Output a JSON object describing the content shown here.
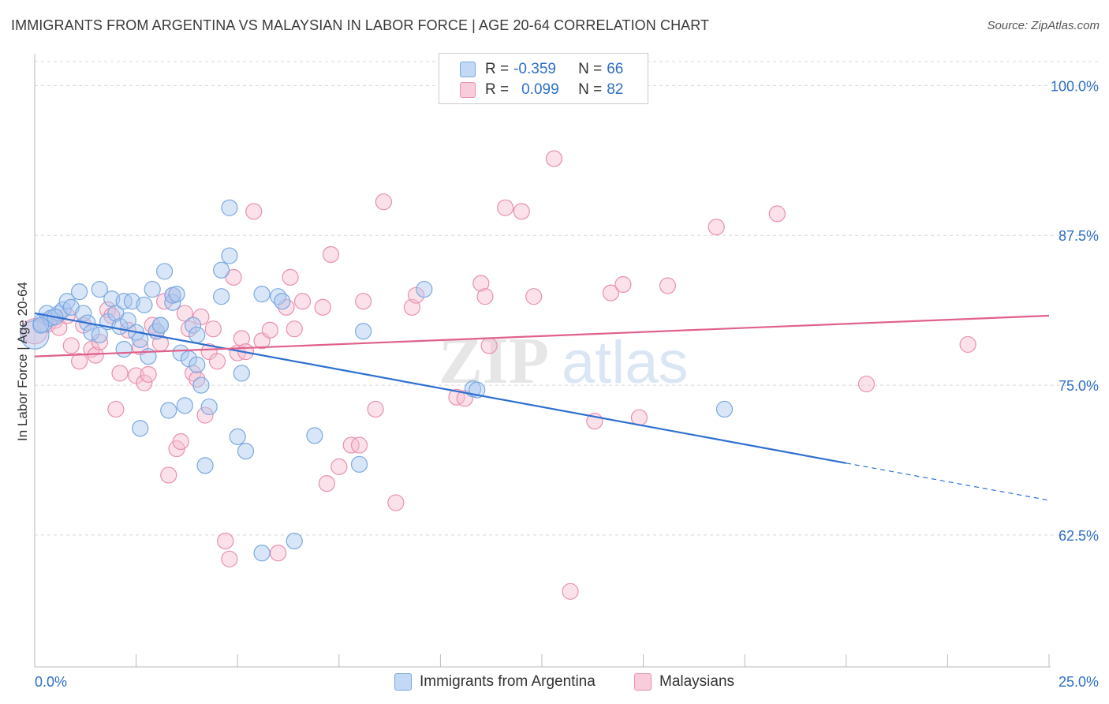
{
  "title": "IMMIGRANTS FROM ARGENTINA VS MALAYSIAN IN LABOR FORCE | AGE 20-64 CORRELATION CHART",
  "source": "Source: ZipAtlas.com",
  "watermark": {
    "zip": "ZIP",
    "atlas": "atlas"
  },
  "legend": {
    "rows": [
      {
        "r_label": "R =",
        "r_value": "-0.359",
        "n_label": "N =",
        "n_value": "66"
      },
      {
        "r_label": "R =",
        "r_value": "0.099",
        "n_label": "N =",
        "n_value": "82"
      }
    ]
  },
  "colors": {
    "blue_fill": "#aac8f0",
    "blue_stroke": "#7aa8e0",
    "blue_line": "#2f6fd0",
    "pink_fill": "#f7bcd0",
    "pink_stroke": "#e890b0",
    "pink_line": "#e0608a",
    "value_text": "#2f6fc7",
    "grid": "#d8d8d8"
  },
  "chart_data": {
    "type": "scatter",
    "title": "IMMIGRANTS FROM ARGENTINA VS MALAYSIAN IN LABOR FORCE | AGE 20-64 CORRELATION CHART",
    "xlabel": "",
    "ylabel": "In Labor Force | Age 20-64",
    "xlim": [
      0,
      25
    ],
    "ylim": [
      51.5,
      102.0
    ],
    "x_tick_labels": [
      "0.0%",
      "25.0%"
    ],
    "y_ticks": [
      100.0,
      87.5,
      75.0,
      62.5
    ],
    "y_tick_labels": [
      "100.0%",
      "87.5%",
      "75.0%",
      "62.5%"
    ],
    "grid": true,
    "legend_position": "top-center",
    "series": [
      {
        "name": "Immigrants from Argentina",
        "color": "blue",
        "R": -0.359,
        "N": 66,
        "trend": {
          "x0": 0,
          "y0": 81.0,
          "x1": 20.0,
          "y1": 68.5,
          "dash_x1": 25.0,
          "dash_y1": 65.4
        },
        "points": [
          [
            0.0,
            79.2,
            18
          ],
          [
            0.2,
            80.2,
            12
          ],
          [
            0.3,
            81.0,
            10
          ],
          [
            0.4,
            80.6,
            10
          ],
          [
            0.6,
            81.0,
            10
          ],
          [
            0.7,
            81.3,
            10
          ],
          [
            0.8,
            82.0,
            10
          ],
          [
            0.9,
            81.5,
            10
          ],
          [
            1.1,
            82.8,
            10
          ],
          [
            1.2,
            81.0,
            10
          ],
          [
            1.3,
            80.2,
            10
          ],
          [
            1.4,
            79.4,
            10
          ],
          [
            1.6,
            83.0,
            10
          ],
          [
            1.8,
            80.3,
            10
          ],
          [
            1.6,
            79.2,
            10
          ],
          [
            1.9,
            82.2,
            10
          ],
          [
            2.0,
            81.0,
            10
          ],
          [
            2.1,
            79.9,
            10
          ],
          [
            2.2,
            78.0,
            10
          ],
          [
            2.3,
            80.4,
            10
          ],
          [
            2.2,
            82.0,
            10
          ],
          [
            2.4,
            82.0,
            10
          ],
          [
            2.5,
            79.4,
            10
          ],
          [
            2.6,
            78.8,
            10
          ],
          [
            2.6,
            71.4,
            10
          ],
          [
            2.7,
            81.7,
            10
          ],
          [
            2.8,
            77.4,
            10
          ],
          [
            2.9,
            83.0,
            10
          ],
          [
            3.0,
            79.5,
            10
          ],
          [
            3.1,
            80.0,
            10
          ],
          [
            3.2,
            84.5,
            10
          ],
          [
            3.3,
            72.9,
            10
          ],
          [
            3.1,
            80.0,
            10
          ],
          [
            3.4,
            81.9,
            10
          ],
          [
            3.4,
            82.5,
            10
          ],
          [
            3.5,
            82.6,
            10
          ],
          [
            3.6,
            77.7,
            10
          ],
          [
            3.7,
            73.3,
            10
          ],
          [
            3.8,
            77.2,
            10
          ],
          [
            3.9,
            80.0,
            10
          ],
          [
            4.0,
            79.2,
            10
          ],
          [
            4.0,
            76.7,
            10
          ],
          [
            4.1,
            75.0,
            10
          ],
          [
            4.2,
            68.3,
            10
          ],
          [
            4.3,
            73.2,
            10
          ],
          [
            4.6,
            82.4,
            10
          ],
          [
            4.6,
            84.6,
            10
          ],
          [
            4.8,
            85.8,
            10
          ],
          [
            4.8,
            89.8,
            10
          ],
          [
            5.0,
            70.7,
            10
          ],
          [
            5.1,
            76.0,
            10
          ],
          [
            5.2,
            69.5,
            10
          ],
          [
            5.6,
            82.6,
            10
          ],
          [
            5.6,
            61.0,
            10
          ],
          [
            6.0,
            82.4,
            10
          ],
          [
            6.1,
            82.0,
            10
          ],
          [
            6.4,
            62.0,
            10
          ],
          [
            6.9,
            70.8,
            10
          ],
          [
            8.0,
            68.4,
            10
          ],
          [
            8.1,
            79.5,
            10
          ],
          [
            9.6,
            83.0,
            10
          ],
          [
            10.8,
            74.7,
            10
          ],
          [
            10.9,
            74.6,
            10
          ],
          [
            17.0,
            73.0,
            10
          ],
          [
            0.15,
            80.0,
            10
          ],
          [
            0.5,
            80.7,
            10
          ]
        ]
      },
      {
        "name": "Malaysians",
        "color": "pink",
        "R": 0.099,
        "N": 82,
        "trend": {
          "x0": 0,
          "y0": 77.4,
          "x1": 25.0,
          "y1": 80.8
        },
        "points": [
          [
            0.0,
            79.5,
            16
          ],
          [
            0.3,
            80.2,
            12
          ],
          [
            0.5,
            80.4,
            10
          ],
          [
            0.6,
            79.8,
            10
          ],
          [
            0.8,
            80.8,
            10
          ],
          [
            0.9,
            78.3,
            10
          ],
          [
            1.1,
            77.0,
            10
          ],
          [
            1.2,
            80.0,
            10
          ],
          [
            1.4,
            78.0,
            10
          ],
          [
            1.5,
            77.5,
            10
          ],
          [
            1.6,
            78.6,
            10
          ],
          [
            1.8,
            81.3,
            10
          ],
          [
            1.9,
            80.8,
            10
          ],
          [
            2.0,
            73.0,
            10
          ],
          [
            2.1,
            76.0,
            10
          ],
          [
            2.3,
            79.6,
            10
          ],
          [
            2.5,
            75.8,
            10
          ],
          [
            2.6,
            78.2,
            10
          ],
          [
            2.7,
            75.2,
            10
          ],
          [
            2.8,
            75.9,
            10
          ],
          [
            2.9,
            80.0,
            10
          ],
          [
            3.0,
            79.5,
            10
          ],
          [
            3.1,
            78.5,
            10
          ],
          [
            3.2,
            82.0,
            10
          ],
          [
            3.3,
            67.5,
            10
          ],
          [
            3.4,
            82.5,
            10
          ],
          [
            3.5,
            69.7,
            10
          ],
          [
            3.6,
            70.3,
            10
          ],
          [
            3.7,
            81.0,
            10
          ],
          [
            3.8,
            79.7,
            10
          ],
          [
            3.9,
            76.0,
            10
          ],
          [
            4.0,
            75.5,
            10
          ],
          [
            4.1,
            80.7,
            10
          ],
          [
            4.2,
            72.5,
            10
          ],
          [
            4.3,
            77.8,
            10
          ],
          [
            4.4,
            79.7,
            10
          ],
          [
            4.5,
            77.0,
            10
          ],
          [
            4.7,
            62.0,
            10
          ],
          [
            4.8,
            60.5,
            10
          ],
          [
            4.9,
            84.0,
            10
          ],
          [
            5.0,
            77.7,
            10
          ],
          [
            5.1,
            78.9,
            10
          ],
          [
            5.2,
            77.8,
            10
          ],
          [
            5.4,
            89.5,
            10
          ],
          [
            5.6,
            78.7,
            10
          ],
          [
            5.8,
            79.6,
            10
          ],
          [
            6.0,
            61.0,
            10
          ],
          [
            6.2,
            81.5,
            10
          ],
          [
            6.3,
            84.0,
            10
          ],
          [
            6.4,
            79.7,
            10
          ],
          [
            6.6,
            82.0,
            10
          ],
          [
            7.1,
            81.5,
            10
          ],
          [
            7.2,
            66.8,
            10
          ],
          [
            7.3,
            85.9,
            10
          ],
          [
            7.5,
            68.2,
            10
          ],
          [
            7.8,
            70.0,
            10
          ],
          [
            8.0,
            70.0,
            10
          ],
          [
            8.1,
            82.0,
            10
          ],
          [
            8.4,
            73.0,
            10
          ],
          [
            8.6,
            90.3,
            10
          ],
          [
            8.9,
            65.2,
            10
          ],
          [
            9.3,
            81.5,
            10
          ],
          [
            9.4,
            82.5,
            10
          ],
          [
            10.4,
            74.0,
            10
          ],
          [
            10.6,
            73.9,
            10
          ],
          [
            11.0,
            83.5,
            10
          ],
          [
            11.1,
            82.4,
            10
          ],
          [
            11.2,
            78.3,
            10
          ],
          [
            11.6,
            89.8,
            10
          ],
          [
            12.0,
            89.5,
            10
          ],
          [
            12.3,
            82.4,
            10
          ],
          [
            12.8,
            93.9,
            10
          ],
          [
            13.2,
            57.8,
            10
          ],
          [
            13.8,
            72.0,
            10
          ],
          [
            14.2,
            82.7,
            10
          ],
          [
            14.5,
            83.4,
            10
          ],
          [
            14.9,
            72.3,
            10
          ],
          [
            15.6,
            83.3,
            10
          ],
          [
            16.8,
            88.2,
            10
          ],
          [
            18.3,
            89.3,
            10
          ],
          [
            20.5,
            75.1,
            10
          ],
          [
            23.0,
            78.4,
            10
          ]
        ]
      }
    ]
  },
  "bottom_legend": {
    "items": [
      {
        "label": "Immigrants from Argentina"
      },
      {
        "label": "Malaysians"
      }
    ]
  }
}
